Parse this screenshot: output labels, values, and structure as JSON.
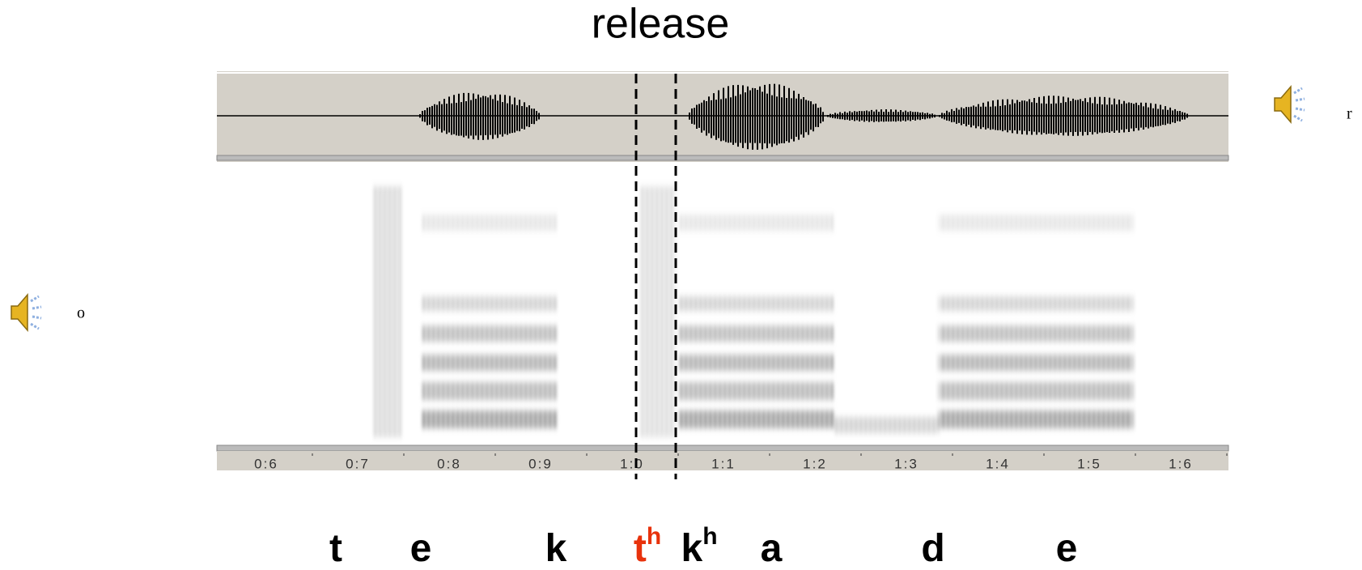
{
  "title": "release",
  "time_axis": {
    "ticks": [
      {
        "value": 0.6,
        "label": "0:6"
      },
      {
        "value": 0.7,
        "label": "0:7"
      },
      {
        "value": 0.8,
        "label": "0:8"
      },
      {
        "value": 0.9,
        "label": "0:9"
      },
      {
        "value": 1.0,
        "label": "1:0"
      },
      {
        "value": 1.1,
        "label": "1:1"
      },
      {
        "value": 1.2,
        "label": "1:2"
      },
      {
        "value": 1.3,
        "label": "1:3"
      },
      {
        "value": 1.4,
        "label": "1:4"
      },
      {
        "value": 1.5,
        "label": "1:5"
      },
      {
        "value": 1.6,
        "label": "1:6"
      }
    ]
  },
  "phonemes": [
    {
      "text": "t"
    },
    {
      "text": "e"
    },
    {
      "text": "k"
    },
    {
      "text": "t",
      "sup": "h",
      "color": "#e8320c"
    },
    {
      "text": "k",
      "sup": "h"
    },
    {
      "text": "a"
    },
    {
      "text": "d"
    },
    {
      "text": "e"
    }
  ],
  "audio": {
    "left_label": "o",
    "right_label": "r"
  }
}
